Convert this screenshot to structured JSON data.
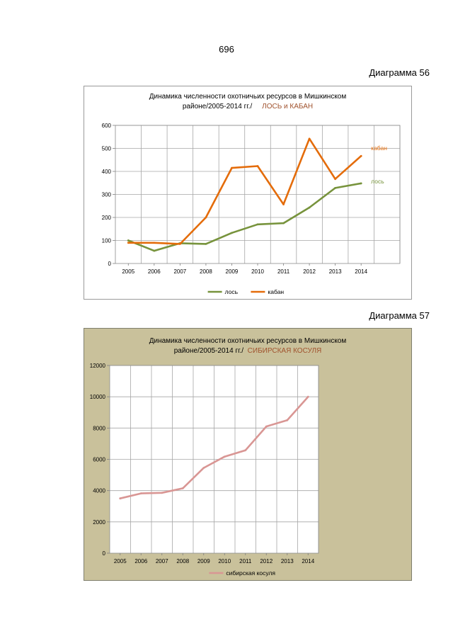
{
  "page": {
    "number": "696"
  },
  "captions": {
    "diagram1": "Диаграмма 56",
    "diagram2": "Диаграмма 57"
  },
  "chart_data": [
    {
      "type": "line",
      "title_line1": "Динамика численности охотничьих ресурсов в Мишкинском",
      "title_line2": "районе/2005-2014 гг./",
      "title_highlight": "ЛОСЬ и КАБАН",
      "categories": [
        "2005",
        "2006",
        "2007",
        "2008",
        "2009",
        "2010",
        "2011",
        "2012",
        "2013",
        "2014"
      ],
      "series": [
        {
          "name": "лось",
          "label": "лось",
          "color": "#77933c",
          "values": [
            100,
            55,
            88,
            85,
            133,
            170,
            175,
            243,
            328,
            348
          ]
        },
        {
          "name": "кабан",
          "label": "кабан",
          "color": "#e46c0a",
          "values": [
            90,
            90,
            85,
            200,
            415,
            423,
            257,
            542,
            367,
            467
          ]
        }
      ],
      "ylim": [
        0,
        600
      ],
      "yticks": [
        0,
        100,
        200,
        300,
        400,
        500,
        600
      ],
      "grid": true,
      "legend": "bottom"
    },
    {
      "type": "line",
      "title_line1": "Динамика численности охотничьих ресурсов в Мишкинском",
      "title_line2": "районе/2005-2014 гг./",
      "title_highlight": "СИБИРСКАЯ КОСУЛЯ",
      "categories": [
        "2005",
        "2006",
        "2007",
        "2008",
        "2009",
        "2010",
        "2011",
        "2012",
        "2013",
        "2014"
      ],
      "series": [
        {
          "name": "сибирская косуля",
          "color": "#d99694",
          "values": [
            3500,
            3820,
            3860,
            4150,
            5450,
            6170,
            6580,
            8100,
            8500,
            10000
          ]
        }
      ],
      "ylim": [
        0,
        12000
      ],
      "yticks": [
        0,
        2000,
        4000,
        6000,
        8000,
        10000,
        12000
      ],
      "grid": true,
      "legend": "bottom"
    }
  ]
}
